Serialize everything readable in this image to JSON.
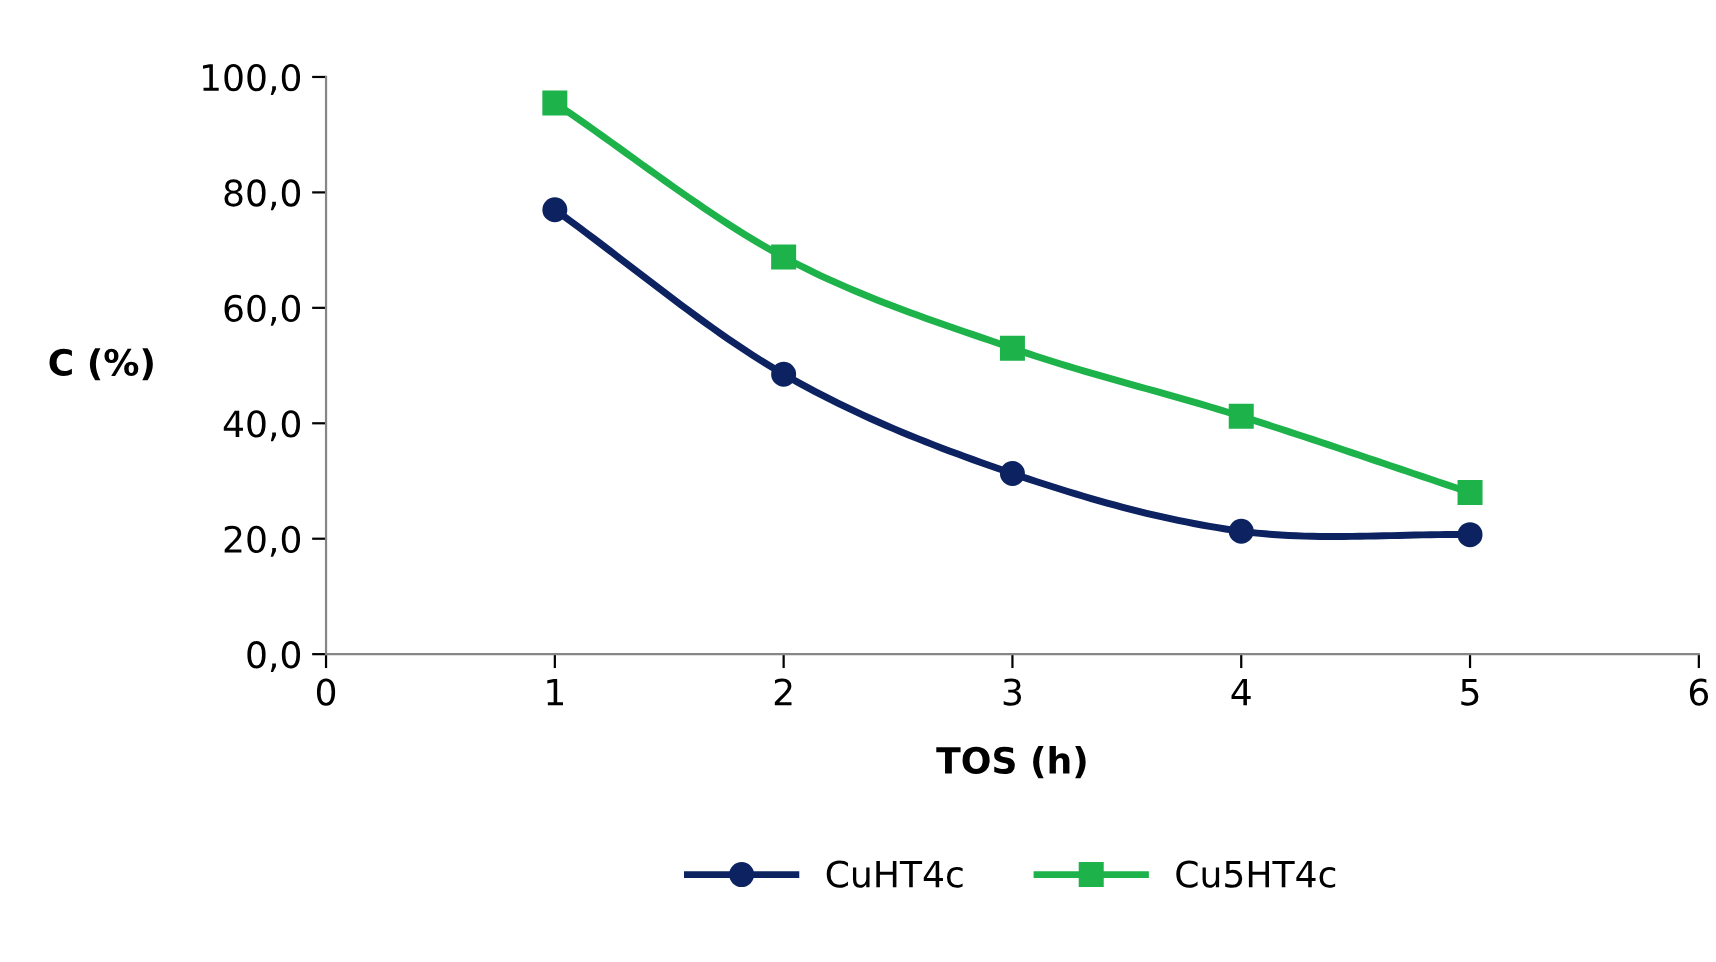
{
  "chart_data": {
    "type": "line",
    "xlabel": "TOS (h)",
    "ylabel": "C (%)",
    "xlim": [
      0,
      6
    ],
    "xticks": [
      0,
      1,
      2,
      3,
      4,
      5,
      6
    ],
    "ylim": [
      0,
      100
    ],
    "yticks": [
      {
        "value": 0,
        "label": "0,0"
      },
      {
        "value": 20,
        "label": "20,0"
      },
      {
        "value": 40,
        "label": "40,0"
      },
      {
        "value": 60,
        "label": "60,0"
      },
      {
        "value": 80,
        "label": "80,0"
      },
      {
        "value": 100,
        "label": "100,0"
      }
    ],
    "x": [
      1,
      2,
      3,
      4,
      5
    ],
    "series": [
      {
        "name": "CuHT4c",
        "color": "#0d2361",
        "marker": "circle",
        "values": [
          77.0,
          48.5,
          31.3,
          21.3,
          20.7
        ]
      },
      {
        "name": "Cu5HT4c",
        "color": "#1db34a",
        "marker": "square",
        "values": [
          95.5,
          68.8,
          53.0,
          41.2,
          28.0
        ]
      }
    ],
    "grid": false,
    "legend": "bottom",
    "line_style": "solid"
  }
}
